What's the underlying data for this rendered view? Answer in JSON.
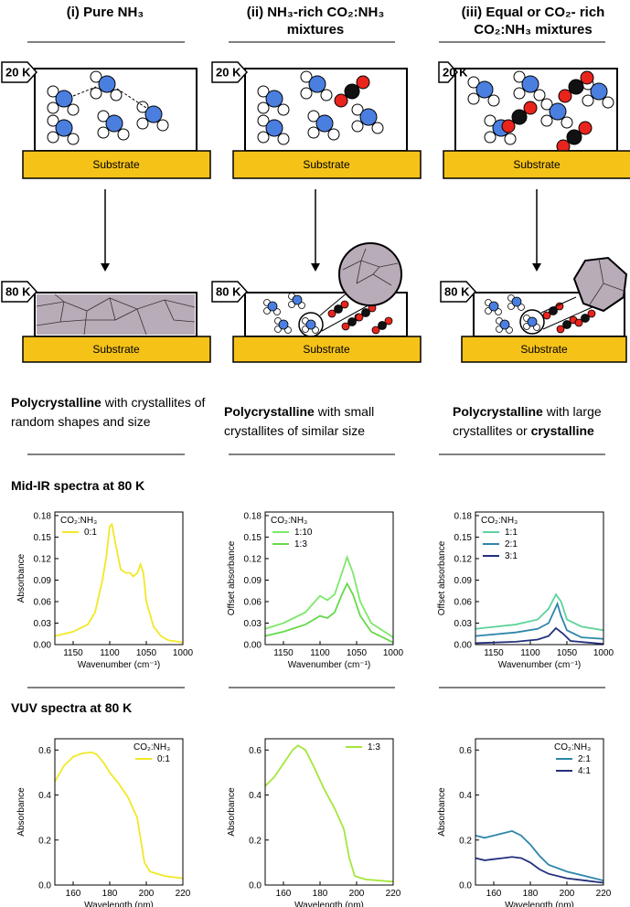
{
  "columns": [
    {
      "title": "(i) Pure NH₃",
      "top_panel": {
        "temperature": "20 K",
        "substrate": "Substrate"
      },
      "bottom_panel": {
        "temperature": "80 K",
        "substrate": "Substrate"
      },
      "description": [
        {
          "text": "Polycrystalline",
          "bold": true
        },
        {
          "text": " with crystallites of random shapes and size",
          "bold": false
        }
      ]
    },
    {
      "title": "(ii) NH₃-rich CO₂:NH₃ mixtures",
      "top_panel": {
        "temperature": "20 K",
        "substrate": "Substrate"
      },
      "bottom_panel": {
        "temperature": "80 K",
        "substrate": "Substrate"
      },
      "description": [
        {
          "text": "Polycrystalline",
          "bold": true
        },
        {
          "text": " with small crystallites of similar size",
          "bold": false
        }
      ]
    },
    {
      "title": "(iii) Equal or  CO₂- rich CO₂:NH₃ mixtures",
      "top_panel": {
        "temperature": "20 K",
        "substrate": "Substrate"
      },
      "bottom_panel": {
        "temperature": "80 K",
        "substrate": "Substrate"
      },
      "description": [
        {
          "text": "Polycrystalline",
          "bold": true
        },
        {
          "text": " with large crystallites or ",
          "bold": false
        },
        {
          "text": "crystalline",
          "bold": true
        }
      ]
    }
  ],
  "section_labels": [
    "Mid-IR spectra at 80 K",
    "VUV spectra at 80 K"
  ],
  "chart_data": [
    {
      "type": "line",
      "xlabel": "Wavenumber (cm⁻¹)",
      "ylabel": "Absorbance",
      "xlim": [
        1175,
        1000
      ],
      "ylim": [
        0,
        0.185
      ],
      "xticks": [
        1150,
        1100,
        1050,
        1000
      ],
      "yticks": [
        {
          "value": 0,
          "label": "0.00"
        },
        0.03,
        0.06,
        0.09,
        0.12,
        0.15,
        0.18
      ],
      "legend_title": "CO₂:NH₃",
      "legend": "upper left",
      "series": [
        {
          "name": "0:1",
          "color": "#f2e826",
          "x": [
            1175,
            1150,
            1130,
            1120,
            1110,
            1105,
            1100,
            1097,
            1092,
            1085,
            1078,
            1072,
            1068,
            1062,
            1058,
            1054,
            1050,
            1040,
            1030,
            1020,
            1000
          ],
          "values": [
            0.012,
            0.018,
            0.028,
            0.045,
            0.09,
            0.12,
            0.165,
            0.168,
            0.14,
            0.105,
            0.1,
            0.1,
            0.095,
            0.1,
            0.112,
            0.1,
            0.06,
            0.025,
            0.012,
            0.006,
            0.003
          ]
        }
      ]
    },
    {
      "type": "line",
      "xlabel": "Wavenumber (cm⁻¹)",
      "ylabel": "Offset absorbance",
      "xlim": [
        1175,
        1000
      ],
      "ylim": [
        0,
        0.185
      ],
      "xticks": [
        1150,
        1100,
        1050,
        1000
      ],
      "yticks": [
        {
          "value": 0,
          "label": "0.00"
        },
        0.03,
        0.06,
        0.09,
        0.12,
        0.15,
        0.18
      ],
      "legend_title": "CO₂:NH₃",
      "legend": "upper left",
      "series": [
        {
          "name": "1:10",
          "color": "#7de86a",
          "x": [
            1175,
            1150,
            1120,
            1100,
            1090,
            1080,
            1070,
            1063,
            1055,
            1045,
            1030,
            1000
          ],
          "values": [
            0.022,
            0.03,
            0.045,
            0.068,
            0.062,
            0.07,
            0.1,
            0.122,
            0.1,
            0.06,
            0.03,
            0.01
          ]
        },
        {
          "name": "1:3",
          "color": "#66d94a",
          "x": [
            1175,
            1150,
            1120,
            1100,
            1090,
            1080,
            1070,
            1063,
            1055,
            1045,
            1030,
            1000
          ],
          "values": [
            0.012,
            0.018,
            0.028,
            0.04,
            0.037,
            0.045,
            0.07,
            0.085,
            0.07,
            0.04,
            0.018,
            0.003
          ]
        }
      ]
    },
    {
      "type": "line",
      "xlabel": "Wavenumber (cm⁻¹)",
      "ylabel": "Offset absorbance",
      "xlim": [
        1175,
        1000
      ],
      "ylim": [
        0,
        0.185
      ],
      "xticks": [
        1150,
        1100,
        1050,
        1000
      ],
      "yticks": [
        {
          "value": 0,
          "label": "0.00"
        },
        0.03,
        0.06,
        0.09,
        0.12,
        0.15,
        0.18
      ],
      "legend_title": "CO₂:NH₃",
      "legend": "upper left",
      "series": [
        {
          "name": "1:1",
          "color": "#5fd39b",
          "x": [
            1175,
            1120,
            1090,
            1075,
            1065,
            1058,
            1050,
            1030,
            1000
          ],
          "values": [
            0.022,
            0.028,
            0.035,
            0.05,
            0.07,
            0.06,
            0.035,
            0.025,
            0.02
          ]
        },
        {
          "name": "2:1",
          "color": "#2e86ab",
          "x": [
            1175,
            1120,
            1090,
            1075,
            1063,
            1058,
            1050,
            1030,
            1000
          ],
          "values": [
            0.012,
            0.017,
            0.022,
            0.03,
            0.057,
            0.04,
            0.02,
            0.01,
            0.008
          ]
        },
        {
          "name": "3:1",
          "color": "#23307c",
          "x": [
            1175,
            1120,
            1090,
            1075,
            1065,
            1055,
            1045,
            1000
          ],
          "values": [
            0.002,
            0.004,
            0.007,
            0.012,
            0.023,
            0.015,
            0.005,
            0.001
          ]
        }
      ]
    },
    {
      "type": "line",
      "xlabel": "Wavelength (nm)",
      "ylabel": "Absorbance",
      "xlim": [
        150,
        220
      ],
      "ylim": [
        0,
        0.65
      ],
      "xticks": [
        160,
        180,
        200,
        220
      ],
      "yticks": [
        {
          "value": 0,
          "label": "0.0"
        },
        0.2,
        0.4,
        0.6
      ],
      "legend_title": "CO₂:NH₃",
      "legend": "upper right",
      "series": [
        {
          "name": "0:1",
          "color": "#f2e826",
          "x": [
            150,
            155,
            160,
            165,
            170,
            173,
            177,
            180,
            185,
            190,
            195,
            197,
            199,
            202,
            210,
            220
          ],
          "values": [
            0.46,
            0.53,
            0.57,
            0.585,
            0.59,
            0.58,
            0.54,
            0.5,
            0.45,
            0.39,
            0.3,
            0.2,
            0.1,
            0.06,
            0.04,
            0.03
          ]
        }
      ]
    },
    {
      "type": "line",
      "xlabel": "Wavelength (nm)",
      "ylabel": "Absorbance",
      "xlim": [
        150,
        220
      ],
      "ylim": [
        0,
        0.65
      ],
      "xticks": [
        160,
        180,
        200,
        220
      ],
      "yticks": [
        {
          "value": 0,
          "label": "0.0"
        },
        0.2,
        0.4,
        0.6
      ],
      "legend": "upper right",
      "series": [
        {
          "name": "1:3",
          "color": "#a6e63a",
          "x": [
            150,
            155,
            160,
            165,
            168,
            172,
            177,
            182,
            188,
            193,
            196,
            199,
            205,
            220
          ],
          "values": [
            0.44,
            0.48,
            0.54,
            0.6,
            0.62,
            0.6,
            0.52,
            0.43,
            0.34,
            0.25,
            0.12,
            0.04,
            0.025,
            0.015
          ]
        }
      ]
    },
    {
      "type": "line",
      "xlabel": "Wavelength (nm)",
      "ylabel": "Absorbance",
      "xlim": [
        150,
        220
      ],
      "ylim": [
        0,
        0.65
      ],
      "xticks": [
        160,
        180,
        200,
        220
      ],
      "yticks": [
        {
          "value": 0,
          "label": "0.0"
        },
        0.2,
        0.4,
        0.6
      ],
      "legend_title": "CO₂:NH₃",
      "legend": "upper right",
      "series": [
        {
          "name": "2:1",
          "color": "#2e86ab",
          "x": [
            150,
            155,
            160,
            165,
            170,
            175,
            180,
            185,
            190,
            200,
            210,
            220
          ],
          "values": [
            0.22,
            0.21,
            0.22,
            0.23,
            0.24,
            0.22,
            0.18,
            0.13,
            0.09,
            0.06,
            0.04,
            0.02
          ]
        },
        {
          "name": "4:1",
          "color": "#23307c",
          "x": [
            150,
            155,
            160,
            165,
            170,
            175,
            180,
            185,
            190,
            200,
            210,
            220
          ],
          "values": [
            0.12,
            0.11,
            0.115,
            0.12,
            0.125,
            0.12,
            0.1,
            0.07,
            0.05,
            0.03,
            0.02,
            0.01
          ]
        }
      ]
    }
  ]
}
